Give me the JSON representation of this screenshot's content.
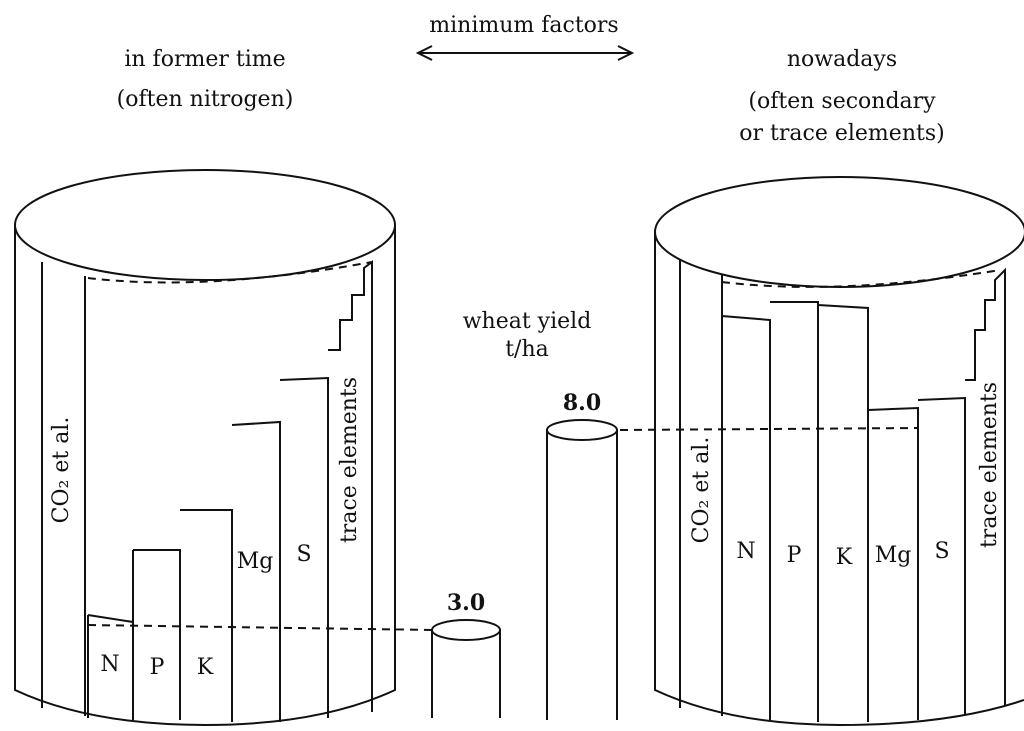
{
  "header": {
    "title": "minimum factors"
  },
  "left": {
    "title": "in former time",
    "subtitle": "(often nitrogen)",
    "staves": [
      "CO₂ et al.",
      "N",
      "P",
      "K",
      "Mg",
      "S",
      "trace elements"
    ]
  },
  "right": {
    "title": "nowadays",
    "subtitle_lines": [
      "(often secondary",
      "or trace elements)"
    ],
    "staves": [
      "CO₂ et al.",
      "N",
      "P",
      "K",
      "Mg",
      "S",
      "trace elements"
    ]
  },
  "center": {
    "label_lines": [
      "wheat yield",
      "t/ha"
    ],
    "yields": [
      "3.0",
      "8.0"
    ]
  }
}
